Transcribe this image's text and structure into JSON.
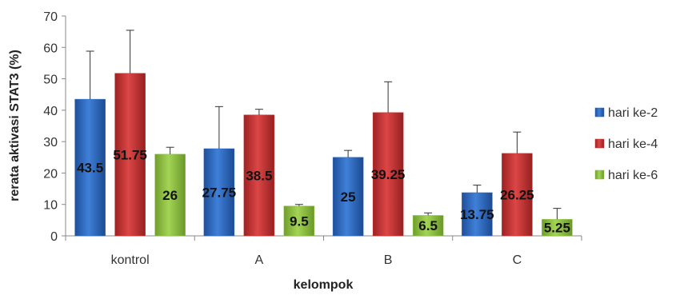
{
  "chart_data": {
    "type": "bar",
    "xlabel": "kelompok",
    "ylabel": "rerata  aktivasi  STAT3 (%)",
    "ylim": [
      0,
      70
    ],
    "yticks": [
      0,
      10,
      20,
      30,
      40,
      50,
      60,
      70
    ],
    "categories": [
      "kontrol",
      "A",
      "B",
      "C"
    ],
    "grid": false,
    "legend_position": "right",
    "series": [
      {
        "name": "hari ke-2",
        "color": "#2e6bc4",
        "values": [
          43.5,
          27.75,
          25,
          13.75
        ],
        "labels": [
          "43.5",
          "27.75",
          "25",
          "13.75"
        ],
        "error": [
          15.3,
          13.4,
          2.2,
          2.4
        ]
      },
      {
        "name": "hari ke-4",
        "color": "#cc3333",
        "values": [
          51.75,
          38.5,
          39.25,
          26.25
        ],
        "labels": [
          "51.75",
          "38.5",
          "39.25",
          "26.25"
        ],
        "error": [
          13.7,
          1.8,
          9.8,
          6.8
        ]
      },
      {
        "name": "hari ke-6",
        "color": "#8dc63f",
        "values": [
          26,
          9.5,
          6.5,
          5.25
        ],
        "labels": [
          "26",
          "9.5",
          "6.5",
          "5.25"
        ],
        "error": [
          2.2,
          0.5,
          0.8,
          3.5
        ]
      }
    ]
  }
}
